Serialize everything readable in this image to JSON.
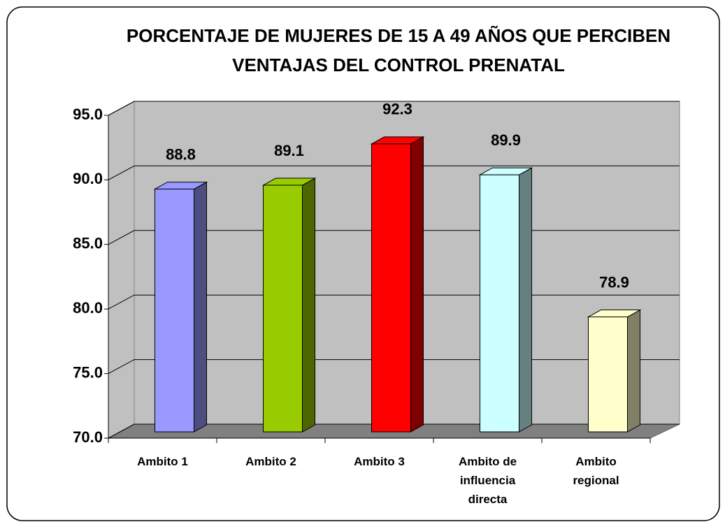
{
  "chart_data": {
    "type": "bar3d",
    "title": "PORCENTAJE DE MUJERES DE 15 A 49 AÑOS QUE PERCIBEN  VENTAJAS DEL CONTROL PRENATAL",
    "categories": [
      "Ambito 1",
      "Ambito 2",
      "Ambito 3",
      "Ambito de influencia directa",
      "Ambito regional"
    ],
    "values": [
      88.8,
      89.1,
      92.3,
      89.9,
      78.9
    ],
    "colors": [
      "#9999ff",
      "#99cc00",
      "#ff0000",
      "#ccffff",
      "#ffffcc"
    ],
    "ylim": [
      70,
      95
    ],
    "yticks": [
      {
        "value": 70,
        "label": "70.0"
      },
      {
        "value": 75,
        "label": "75.0"
      },
      {
        "value": 80,
        "label": "80.0"
      },
      {
        "value": 85,
        "label": "85.0"
      },
      {
        "value": 90,
        "label": "90.0"
      },
      {
        "value": 95,
        "label": "95.0"
      }
    ],
    "grid": true
  }
}
